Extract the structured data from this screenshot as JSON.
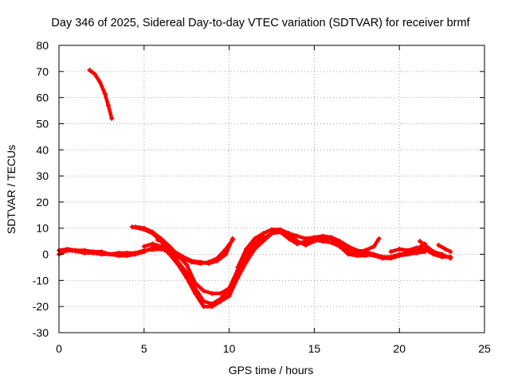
{
  "chart_data": {
    "type": "scatter",
    "title": "Day 346 of 2025, Sidereal Day-to-day VTEC variation (SDTVAR) for receiver brmf",
    "xlabel": "GPS time / hours",
    "ylabel": "SDTVAR / TECUs",
    "xlim": [
      0,
      25
    ],
    "ylim": [
      -30,
      80
    ],
    "xticks": [
      0,
      5,
      10,
      15,
      20,
      25
    ],
    "yticks": [
      -30,
      -20,
      -10,
      0,
      10,
      20,
      30,
      40,
      50,
      60,
      70,
      80
    ],
    "grid": true,
    "series": [
      {
        "name": "track-1",
        "color": "#ff0000",
        "points": [
          [
            1.8,
            70.5
          ],
          [
            2.1,
            69
          ],
          [
            2.4,
            66
          ],
          [
            2.7,
            61.5
          ],
          [
            2.9,
            57
          ],
          [
            3.1,
            52
          ]
        ]
      },
      {
        "name": "track-2",
        "color": "#ff0000",
        "points": [
          [
            0,
            1.5
          ],
          [
            0.5,
            2
          ],
          [
            1,
            1.5
          ],
          [
            1.5,
            1.5
          ],
          [
            2,
            1
          ],
          [
            2.5,
            1
          ],
          [
            3,
            0
          ],
          [
            3.5,
            0.5
          ],
          [
            4,
            0.5
          ],
          [
            4.5,
            0.5
          ],
          [
            5,
            1.5
          ],
          [
            5.5,
            1.8
          ],
          [
            6,
            2
          ],
          [
            6.5,
            1
          ],
          [
            7,
            -1
          ]
        ]
      },
      {
        "name": "track-3",
        "color": "#ff0000",
        "points": [
          [
            0,
            0
          ],
          [
            0.5,
            1.5
          ],
          [
            1,
            1.2
          ],
          [
            1.5,
            0.5
          ],
          [
            2,
            0.5
          ],
          [
            2.5,
            0
          ],
          [
            3,
            0
          ],
          [
            3.5,
            -0.5
          ],
          [
            4,
            -0.5
          ],
          [
            4.5,
            0
          ],
          [
            5,
            1
          ],
          [
            5.5,
            2.5
          ],
          [
            6,
            3
          ],
          [
            6.5,
            2
          ],
          [
            7,
            -1
          ]
        ]
      },
      {
        "name": "track-4",
        "color": "#ff0000",
        "points": [
          [
            4.3,
            10.5
          ],
          [
            5,
            9.5
          ],
          [
            5.5,
            8
          ],
          [
            6,
            5
          ],
          [
            6.5,
            1
          ],
          [
            7,
            -3
          ],
          [
            7.5,
            -7
          ],
          [
            8,
            -13
          ],
          [
            8.5,
            -18
          ],
          [
            9,
            -19
          ],
          [
            9.5,
            -17
          ],
          [
            10,
            -14
          ],
          [
            10.5,
            -7
          ],
          [
            11,
            -1
          ],
          [
            11.5,
            3
          ],
          [
            12,
            6
          ],
          [
            12.5,
            8
          ],
          [
            13,
            8.5
          ],
          [
            13.5,
            6
          ],
          [
            14,
            4
          ]
        ]
      },
      {
        "name": "track-5",
        "color": "#ff0000",
        "points": [
          [
            5,
            3
          ],
          [
            5.5,
            4
          ],
          [
            6,
            3
          ],
          [
            6.5,
            0
          ],
          [
            7,
            -4
          ],
          [
            7.5,
            -9
          ],
          [
            8,
            -15
          ],
          [
            8.5,
            -20
          ],
          [
            9,
            -20
          ],
          [
            9.5,
            -18
          ],
          [
            10,
            -16
          ],
          [
            10.5,
            -9
          ],
          [
            11,
            -3
          ],
          [
            11.5,
            2
          ],
          [
            12,
            5
          ],
          [
            12.5,
            8
          ],
          [
            13,
            9
          ],
          [
            13.5,
            6.5
          ],
          [
            14,
            4
          ]
        ]
      },
      {
        "name": "track-6",
        "color": "#ff0000",
        "points": [
          [
            4.5,
            10.5
          ],
          [
            5,
            10
          ],
          [
            5.5,
            8.5
          ],
          [
            6,
            6
          ],
          [
            6.5,
            3
          ],
          [
            7,
            -0.5
          ],
          [
            7.5,
            -4
          ],
          [
            8,
            -11
          ],
          [
            8.5,
            -14
          ],
          [
            9,
            -15
          ],
          [
            9.5,
            -15
          ],
          [
            10,
            -13
          ],
          [
            10.5,
            -6
          ],
          [
            11,
            1
          ],
          [
            11.5,
            4
          ],
          [
            12,
            7
          ]
        ]
      },
      {
        "name": "track-7",
        "color": "#ff0000",
        "points": [
          [
            5.8,
            5.5
          ],
          [
            6.3,
            4
          ],
          [
            6.8,
            1
          ],
          [
            7.3,
            -1
          ],
          [
            7.8,
            -2.5
          ],
          [
            8.3,
            -3
          ],
          [
            8.8,
            -3.5
          ],
          [
            9.3,
            -2.5
          ],
          [
            9.8,
            0
          ],
          [
            10.2,
            6
          ]
        ]
      },
      {
        "name": "track-8",
        "color": "#ff0000",
        "points": [
          [
            6.8,
            -1
          ],
          [
            7.3,
            -1.5
          ],
          [
            7.8,
            -3
          ],
          [
            8.3,
            -3.5
          ],
          [
            8.8,
            -3
          ],
          [
            9.3,
            -1.5
          ],
          [
            9.8,
            2
          ],
          [
            10.2,
            5.5
          ]
        ]
      },
      {
        "name": "track-9",
        "color": "#ff0000",
        "points": [
          [
            10.5,
            -5
          ],
          [
            11,
            2
          ],
          [
            11.5,
            6
          ],
          [
            12,
            8
          ],
          [
            12.5,
            9.5
          ],
          [
            13,
            9.5
          ],
          [
            13.5,
            8
          ],
          [
            14,
            5
          ],
          [
            14.5,
            3.5
          ],
          [
            15,
            5
          ],
          [
            15.5,
            6
          ],
          [
            16,
            6
          ],
          [
            16.5,
            4
          ],
          [
            17,
            2
          ],
          [
            17.5,
            1
          ],
          [
            18,
            1.5
          ],
          [
            18.5,
            3
          ],
          [
            18.8,
            6
          ]
        ]
      },
      {
        "name": "track-10",
        "color": "#ff0000",
        "points": [
          [
            13.5,
            8
          ],
          [
            14,
            7
          ],
          [
            14.5,
            6
          ],
          [
            15,
            6.5
          ],
          [
            15.5,
            7
          ],
          [
            16,
            6.5
          ],
          [
            16.5,
            5
          ],
          [
            17,
            3
          ],
          [
            17.5,
            1.5
          ],
          [
            18,
            1
          ],
          [
            18.5,
            0
          ],
          [
            19,
            -1
          ],
          [
            19.5,
            -1.5
          ],
          [
            20,
            -0.5
          ],
          [
            20.5,
            0
          ],
          [
            21,
            0.5
          ],
          [
            21.5,
            1
          ]
        ]
      },
      {
        "name": "track-11",
        "color": "#ff0000",
        "points": [
          [
            14,
            4
          ],
          [
            14.5,
            5
          ],
          [
            15,
            5.5
          ],
          [
            15.5,
            5
          ],
          [
            16,
            4.5
          ],
          [
            16.5,
            3
          ],
          [
            17,
            0
          ],
          [
            17.5,
            -0.5
          ],
          [
            18,
            -0.5
          ],
          [
            18.5,
            0
          ],
          [
            19,
            -1
          ],
          [
            19.5,
            -1
          ],
          [
            20,
            0
          ],
          [
            20.5,
            0.5
          ],
          [
            21,
            1
          ],
          [
            21.5,
            2
          ]
        ]
      },
      {
        "name": "track-12",
        "color": "#ff0000",
        "points": [
          [
            16.5,
            3
          ],
          [
            17,
            1
          ],
          [
            17.5,
            0
          ],
          [
            18,
            0
          ],
          [
            18.5,
            -0.5
          ],
          [
            19,
            -1.5
          ],
          [
            19.5,
            -1.5
          ],
          [
            20,
            -0.5
          ],
          [
            20.5,
            1
          ],
          [
            21,
            2
          ],
          [
            21.5,
            4
          ]
        ]
      },
      {
        "name": "track-13",
        "color": "#ff0000",
        "points": [
          [
            19.5,
            1
          ],
          [
            20,
            2
          ],
          [
            20.5,
            1.5
          ],
          [
            21,
            2.5
          ],
          [
            21.5,
            2
          ],
          [
            22,
            0
          ],
          [
            22.5,
            -1
          ],
          [
            23,
            -1
          ]
        ]
      },
      {
        "name": "track-14",
        "color": "#ff0000",
        "points": [
          [
            21.2,
            5
          ],
          [
            21.6,
            3
          ],
          [
            22,
            1
          ],
          [
            22.5,
            0
          ],
          [
            23,
            -1.5
          ]
        ]
      },
      {
        "name": "track-15",
        "color": "#ff0000",
        "points": [
          [
            22.3,
            3.5
          ],
          [
            22.7,
            2
          ],
          [
            23,
            1
          ]
        ]
      }
    ]
  }
}
